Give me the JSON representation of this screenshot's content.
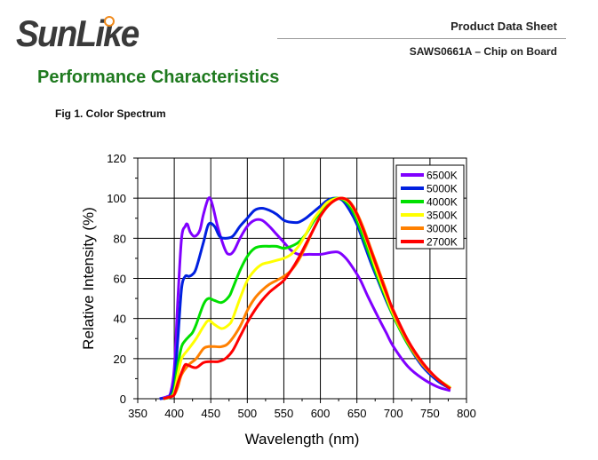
{
  "header": {
    "logo": "SunLike",
    "doc_type": "Product Data Sheet",
    "product": "SAWS0661A – Chip on Board"
  },
  "section_title": "Performance Characteristics",
  "figure_caption": "Fig 1. Color Spectrum",
  "chart_data": {
    "type": "line",
    "title": "Fig 1. Color Spectrum",
    "xlabel": "Wavelength (nm)",
    "ylabel": "Relative Intensity (%)",
    "xlim": [
      350,
      800
    ],
    "ylim": [
      0,
      120
    ],
    "xticks": [
      350,
      400,
      450,
      500,
      550,
      600,
      650,
      700,
      750,
      800
    ],
    "yticks": [
      0,
      20,
      40,
      60,
      80,
      100,
      120
    ],
    "grid": true,
    "legend_position": "top-right",
    "series": [
      {
        "name": "6500K",
        "color": "#8000ff",
        "points": [
          [
            380,
            0
          ],
          [
            390,
            1
          ],
          [
            395,
            3
          ],
          [
            400,
            15
          ],
          [
            405,
            50
          ],
          [
            410,
            80
          ],
          [
            415,
            86
          ],
          [
            418,
            87
          ],
          [
            422,
            83
          ],
          [
            428,
            81
          ],
          [
            435,
            84
          ],
          [
            440,
            92
          ],
          [
            447,
            100
          ],
          [
            452,
            97
          ],
          [
            460,
            85
          ],
          [
            470,
            74
          ],
          [
            476,
            72
          ],
          [
            482,
            74
          ],
          [
            490,
            80
          ],
          [
            500,
            86
          ],
          [
            510,
            89
          ],
          [
            520,
            89
          ],
          [
            530,
            86
          ],
          [
            540,
            82
          ],
          [
            550,
            78
          ],
          [
            560,
            74
          ],
          [
            570,
            72
          ],
          [
            585,
            72
          ],
          [
            600,
            72
          ],
          [
            615,
            73
          ],
          [
            625,
            73
          ],
          [
            635,
            70
          ],
          [
            645,
            65
          ],
          [
            655,
            59
          ],
          [
            665,
            51
          ],
          [
            680,
            40
          ],
          [
            690,
            33
          ],
          [
            700,
            26
          ],
          [
            720,
            16
          ],
          [
            740,
            10
          ],
          [
            760,
            6
          ],
          [
            778,
            4
          ]
        ]
      },
      {
        "name": "5000K",
        "color": "#0020e0",
        "points": [
          [
            380,
            0
          ],
          [
            390,
            0.5
          ],
          [
            395,
            2
          ],
          [
            400,
            8
          ],
          [
            405,
            30
          ],
          [
            410,
            55
          ],
          [
            415,
            61
          ],
          [
            420,
            61
          ],
          [
            425,
            62
          ],
          [
            430,
            65
          ],
          [
            440,
            78
          ],
          [
            447,
            87
          ],
          [
            455,
            86
          ],
          [
            462,
            81
          ],
          [
            470,
            80
          ],
          [
            480,
            81
          ],
          [
            490,
            86
          ],
          [
            500,
            90
          ],
          [
            510,
            94
          ],
          [
            520,
            95
          ],
          [
            530,
            94
          ],
          [
            540,
            92
          ],
          [
            550,
            89
          ],
          [
            560,
            88
          ],
          [
            570,
            88
          ],
          [
            580,
            90
          ],
          [
            590,
            93
          ],
          [
            600,
            96
          ],
          [
            610,
            99
          ],
          [
            620,
            100
          ],
          [
            630,
            99
          ],
          [
            640,
            94
          ],
          [
            650,
            87
          ],
          [
            660,
            77
          ],
          [
            670,
            67
          ],
          [
            680,
            58
          ],
          [
            690,
            49
          ],
          [
            700,
            41
          ],
          [
            720,
            27
          ],
          [
            740,
            16
          ],
          [
            760,
            9
          ],
          [
            778,
            5
          ]
        ]
      },
      {
        "name": "4000K",
        "color": "#00e000",
        "points": [
          [
            385,
            0
          ],
          [
            395,
            1
          ],
          [
            400,
            5
          ],
          [
            405,
            17
          ],
          [
            410,
            26
          ],
          [
            415,
            29
          ],
          [
            420,
            31
          ],
          [
            425,
            33
          ],
          [
            430,
            37
          ],
          [
            440,
            47
          ],
          [
            447,
            50
          ],
          [
            455,
            49
          ],
          [
            465,
            48
          ],
          [
            475,
            51
          ],
          [
            480,
            55
          ],
          [
            490,
            64
          ],
          [
            500,
            71
          ],
          [
            510,
            75
          ],
          [
            520,
            76
          ],
          [
            530,
            76
          ],
          [
            540,
            76
          ],
          [
            550,
            75
          ],
          [
            560,
            76
          ],
          [
            570,
            78
          ],
          [
            580,
            82
          ],
          [
            590,
            88
          ],
          [
            600,
            93
          ],
          [
            610,
            98
          ],
          [
            622,
            100
          ],
          [
            632,
            99
          ],
          [
            642,
            95
          ],
          [
            650,
            89
          ],
          [
            660,
            79
          ],
          [
            670,
            69
          ],
          [
            680,
            59
          ],
          [
            690,
            50
          ],
          [
            700,
            41
          ],
          [
            720,
            27
          ],
          [
            740,
            17
          ],
          [
            760,
            10
          ],
          [
            778,
            5.5
          ]
        ]
      },
      {
        "name": "3500K",
        "color": "#ffff00",
        "points": [
          [
            385,
            0
          ],
          [
            395,
            1
          ],
          [
            400,
            3
          ],
          [
            405,
            12
          ],
          [
            410,
            20
          ],
          [
            420,
            25
          ],
          [
            430,
            30
          ],
          [
            440,
            36
          ],
          [
            447,
            39
          ],
          [
            455,
            37
          ],
          [
            465,
            35
          ],
          [
            475,
            37
          ],
          [
            480,
            40
          ],
          [
            490,
            50
          ],
          [
            500,
            59
          ],
          [
            510,
            64
          ],
          [
            520,
            67
          ],
          [
            530,
            68
          ],
          [
            540,
            69
          ],
          [
            550,
            70
          ],
          [
            560,
            72
          ],
          [
            570,
            76
          ],
          [
            580,
            82
          ],
          [
            590,
            89
          ],
          [
            600,
            94
          ],
          [
            610,
            98
          ],
          [
            625,
            100
          ],
          [
            635,
            99
          ],
          [
            645,
            95
          ],
          [
            655,
            87
          ],
          [
            665,
            77
          ],
          [
            675,
            66
          ],
          [
            685,
            56
          ],
          [
            700,
            42
          ],
          [
            720,
            28
          ],
          [
            740,
            17
          ],
          [
            760,
            10
          ],
          [
            778,
            5.5
          ]
        ]
      },
      {
        "name": "3000K",
        "color": "#ff8000",
        "points": [
          [
            385,
            0
          ],
          [
            395,
            1
          ],
          [
            400,
            2
          ],
          [
            405,
            6
          ],
          [
            410,
            12
          ],
          [
            420,
            17
          ],
          [
            430,
            20
          ],
          [
            440,
            25
          ],
          [
            447,
            26
          ],
          [
            455,
            26
          ],
          [
            465,
            26
          ],
          [
            475,
            28
          ],
          [
            490,
            36
          ],
          [
            500,
            44
          ],
          [
            510,
            50
          ],
          [
            520,
            54
          ],
          [
            530,
            57
          ],
          [
            540,
            59
          ],
          [
            550,
            61
          ],
          [
            560,
            64
          ],
          [
            570,
            69
          ],
          [
            580,
            76
          ],
          [
            590,
            84
          ],
          [
            600,
            91
          ],
          [
            610,
            96
          ],
          [
            620,
            99
          ],
          [
            628,
            100
          ],
          [
            638,
            99
          ],
          [
            648,
            94
          ],
          [
            658,
            86
          ],
          [
            668,
            76
          ],
          [
            678,
            66
          ],
          [
            690,
            54
          ],
          [
            700,
            43
          ],
          [
            720,
            28
          ],
          [
            740,
            17
          ],
          [
            760,
            10
          ],
          [
            778,
            5
          ]
        ]
      },
      {
        "name": "2700K",
        "color": "#ff0000",
        "points": [
          [
            385,
            0
          ],
          [
            395,
            1
          ],
          [
            400,
            2
          ],
          [
            405,
            8
          ],
          [
            410,
            13
          ],
          [
            415,
            17
          ],
          [
            420,
            16.5
          ],
          [
            430,
            15.5
          ],
          [
            440,
            18
          ],
          [
            450,
            18.5
          ],
          [
            460,
            18.5
          ],
          [
            470,
            20
          ],
          [
            480,
            24
          ],
          [
            490,
            31
          ],
          [
            500,
            38
          ],
          [
            510,
            44
          ],
          [
            520,
            49
          ],
          [
            530,
            53
          ],
          [
            540,
            56
          ],
          [
            550,
            59
          ],
          [
            560,
            64
          ],
          [
            570,
            70
          ],
          [
            580,
            77
          ],
          [
            590,
            84
          ],
          [
            600,
            91
          ],
          [
            610,
            96
          ],
          [
            620,
            99
          ],
          [
            630,
            100
          ],
          [
            640,
            98
          ],
          [
            650,
            92
          ],
          [
            660,
            83
          ],
          [
            670,
            73
          ],
          [
            680,
            63
          ],
          [
            690,
            53
          ],
          [
            700,
            44
          ],
          [
            720,
            29
          ],
          [
            740,
            18
          ],
          [
            760,
            10
          ],
          [
            778,
            5
          ]
        ]
      }
    ]
  }
}
